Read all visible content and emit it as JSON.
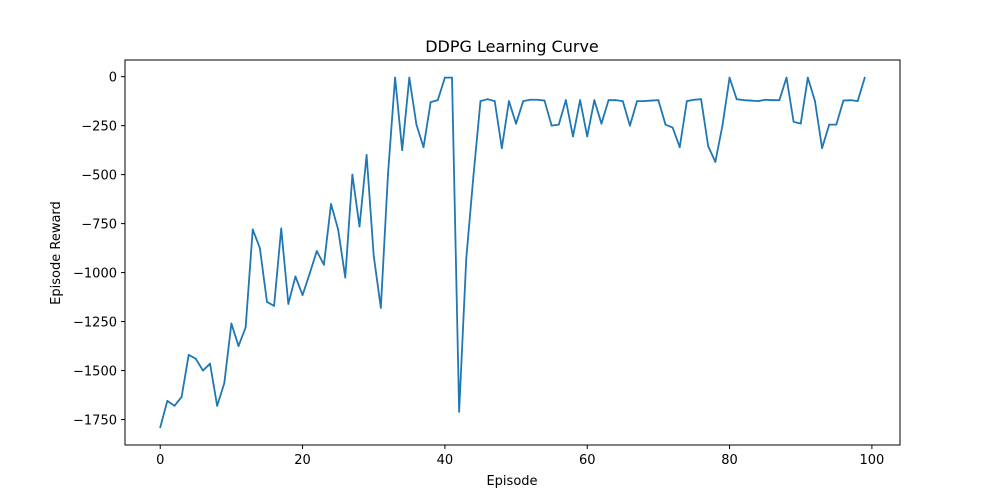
{
  "chart_data": {
    "type": "line",
    "title": "DDPG Learning Curve",
    "xlabel": "Episode",
    "ylabel": "Episode Reward",
    "xlim": [
      -4.95,
      103.95
    ],
    "ylim": [
      -1880,
      85
    ],
    "xticks": [
      0,
      20,
      40,
      60,
      80,
      100
    ],
    "yticks": [
      -1750,
      -1500,
      -1250,
      -1000,
      -750,
      -500,
      -250,
      0
    ],
    "grid": false,
    "legend": "none",
    "series": [
      {
        "color": "#1f77b4",
        "x": [
          0,
          1,
          2,
          3,
          4,
          5,
          6,
          7,
          8,
          9,
          10,
          11,
          12,
          13,
          14,
          15,
          16,
          17,
          18,
          19,
          20,
          21,
          22,
          23,
          24,
          25,
          26,
          27,
          28,
          29,
          30,
          31,
          32,
          33,
          34,
          35,
          36,
          37,
          38,
          39,
          40,
          41,
          42,
          43,
          44,
          45,
          46,
          47,
          48,
          49,
          50,
          51,
          52,
          53,
          54,
          55,
          56,
          57,
          58,
          59,
          60,
          61,
          62,
          63,
          64,
          65,
          66,
          67,
          68,
          69,
          70,
          71,
          72,
          73,
          74,
          75,
          76,
          77,
          78,
          79,
          80,
          81,
          82,
          83,
          84,
          85,
          86,
          87,
          88,
          89,
          90,
          91,
          92,
          93,
          94,
          95,
          96,
          97,
          98,
          99
        ],
        "values": [
          -1790,
          -1655,
          -1680,
          -1635,
          -1420,
          -1440,
          -1500,
          -1465,
          -1680,
          -1565,
          -1260,
          -1375,
          -1280,
          -780,
          -875,
          -1150,
          -1170,
          -775,
          -1160,
          -1020,
          -1115,
          -1005,
          -890,
          -960,
          -650,
          -780,
          -1025,
          -500,
          -765,
          -400,
          -915,
          -1180,
          -500,
          -5,
          -375,
          -5,
          -245,
          -360,
          -130,
          -120,
          -5,
          -5,
          -1710,
          -930,
          -510,
          -125,
          -115,
          -125,
          -365,
          -125,
          -240,
          -125,
          -118,
          -118,
          -122,
          -250,
          -245,
          -120,
          -305,
          -120,
          -305,
          -120,
          -240,
          -120,
          -120,
          -125,
          -250,
          -125,
          -125,
          -122,
          -120,
          -245,
          -260,
          -360,
          -125,
          -118,
          -115,
          -355,
          -435,
          -250,
          -5,
          -115,
          -120,
          -122,
          -125,
          -118,
          -120,
          -120,
          -5,
          -230,
          -240,
          -5,
          -125,
          -365,
          -245,
          -245,
          -122,
          -120,
          -125,
          -5
        ]
      }
    ]
  }
}
